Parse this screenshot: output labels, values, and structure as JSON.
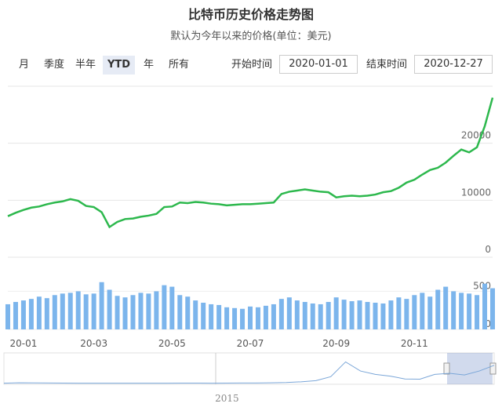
{
  "controls": {
    "ranges": [
      "月",
      "季度",
      "半年",
      "YTD",
      "年",
      "所有"
    ],
    "selected": 3,
    "start_label": "开始时间",
    "start": "2020-01-01",
    "end_label": "结束时间",
    "end": "2020-12-27"
  },
  "chart_data": [
    {
      "type": "line",
      "title": "比特币历史价格走势图",
      "subtitle": "默认为今年以来的价格(单位：美元)",
      "color": "#2db84d",
      "ylim": [
        0,
        30000
      ],
      "yticks": [
        0,
        10000,
        20000
      ],
      "grid": true,
      "values": [
        7200,
        7800,
        8300,
        8700,
        8900,
        9300,
        9600,
        9800,
        10200,
        9900,
        9000,
        8800,
        7900,
        5300,
        6200,
        6700,
        6800,
        7100,
        7300,
        7600,
        8800,
        8900,
        9600,
        9500,
        9700,
        9600,
        9400,
        9300,
        9100,
        9200,
        9300,
        9300,
        9400,
        9500,
        9600,
        11100,
        11500,
        11700,
        11900,
        11700,
        11500,
        11400,
        10500,
        10700,
        10800,
        10700,
        10800,
        11000,
        11400,
        11600,
        12200,
        13100,
        13600,
        14500,
        15300,
        15700,
        16600,
        17800,
        18900,
        18400,
        19300,
        23000,
        28000
      ]
    },
    {
      "type": "bar",
      "color": "#7cb5ec",
      "ylim": [
        0,
        700
      ],
      "yticks": [
        0,
        500
      ],
      "categories": [
        null,
        null,
        "20-01",
        null,
        null,
        null,
        null,
        null,
        null,
        null,
        null,
        "20-03",
        null,
        null,
        null,
        null,
        null,
        null,
        null,
        null,
        null,
        "20-05",
        null,
        null,
        null,
        null,
        null,
        null,
        null,
        null,
        null,
        "20-07",
        null,
        null,
        null,
        null,
        null,
        null,
        null,
        null,
        null,
        null,
        "20-09",
        null,
        null,
        null,
        null,
        null,
        null,
        null,
        null,
        null,
        "20-11",
        null,
        null,
        null,
        null,
        null,
        null,
        null,
        null,
        null,
        null
      ],
      "values": [
        330,
        360,
        380,
        400,
        430,
        410,
        450,
        470,
        480,
        500,
        460,
        470,
        620,
        520,
        440,
        420,
        450,
        480,
        470,
        500,
        580,
        560,
        450,
        430,
        380,
        350,
        330,
        320,
        290,
        280,
        270,
        300,
        290,
        310,
        330,
        400,
        420,
        380,
        360,
        340,
        330,
        360,
        420,
        390,
        370,
        380,
        360,
        350,
        340,
        380,
        420,
        400,
        450,
        480,
        430,
        520,
        560,
        500,
        480,
        470,
        450,
        600,
        540
      ]
    },
    {
      "type": "area",
      "color": "#7aa6d8",
      "ylim": [
        0,
        20000
      ],
      "categories": [
        null,
        null,
        null,
        null,
        null,
        null,
        null,
        null,
        null,
        null,
        null,
        null,
        null,
        null,
        "2015",
        null,
        null,
        null,
        null,
        null,
        null,
        null,
        null,
        null,
        null,
        null,
        null,
        null,
        null,
        null,
        null,
        null,
        null,
        null
      ],
      "values": [
        300,
        600,
        500,
        400,
        350,
        300,
        250,
        250,
        250,
        260,
        280,
        300,
        320,
        330,
        300,
        350,
        420,
        450,
        600,
        900,
        1500,
        2500,
        6000,
        19000,
        11000,
        8000,
        6500,
        4000,
        3800,
        8000,
        9000,
        7500,
        11000,
        16000
      ]
    }
  ]
}
